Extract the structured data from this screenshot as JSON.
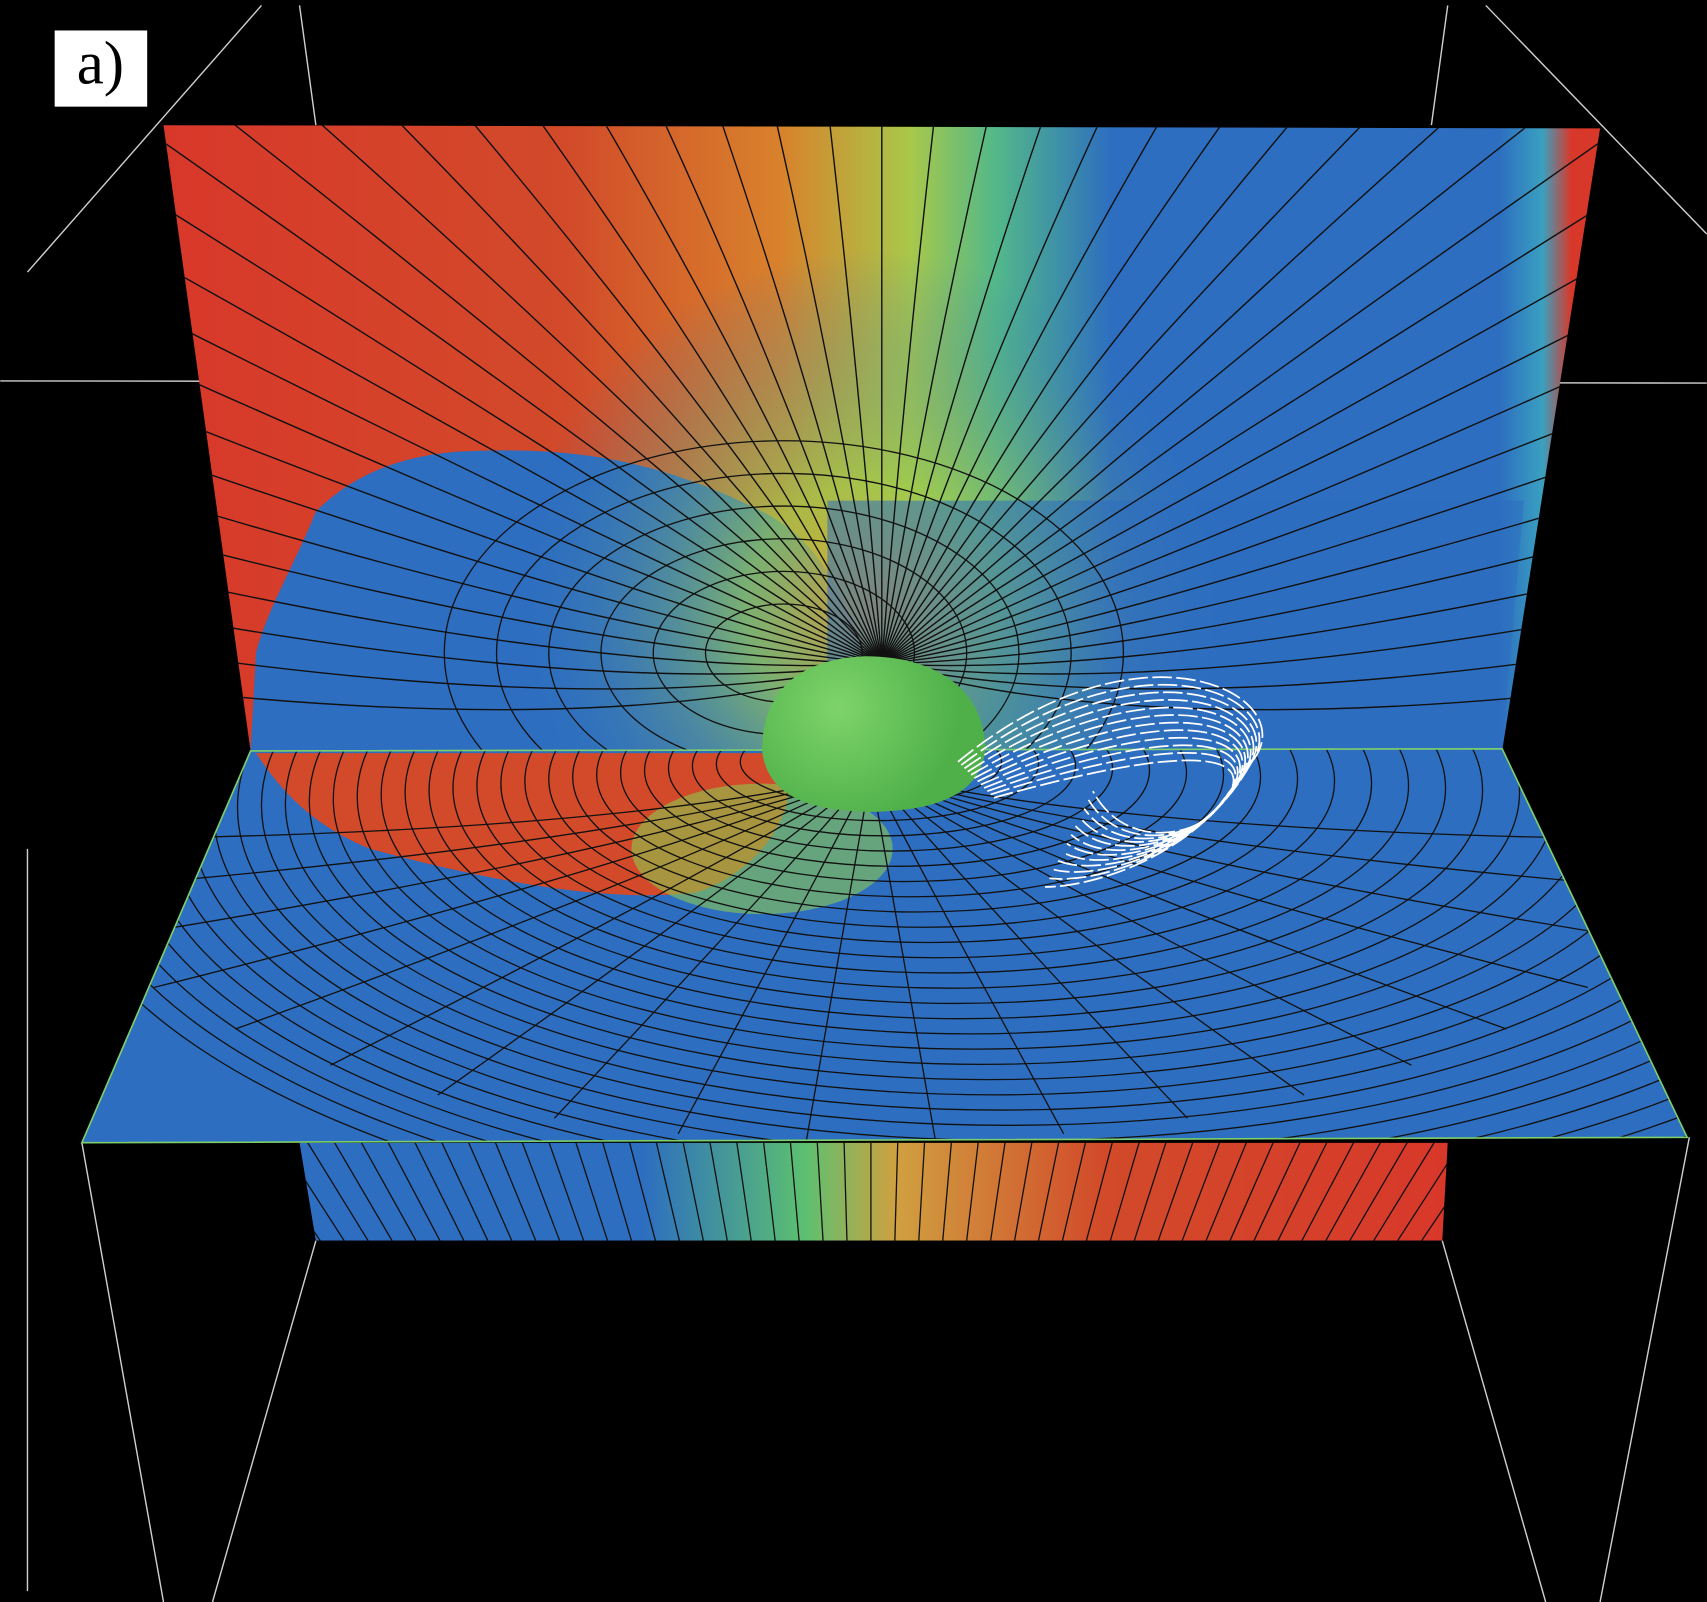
{
  "panel_label": "a)"
}
